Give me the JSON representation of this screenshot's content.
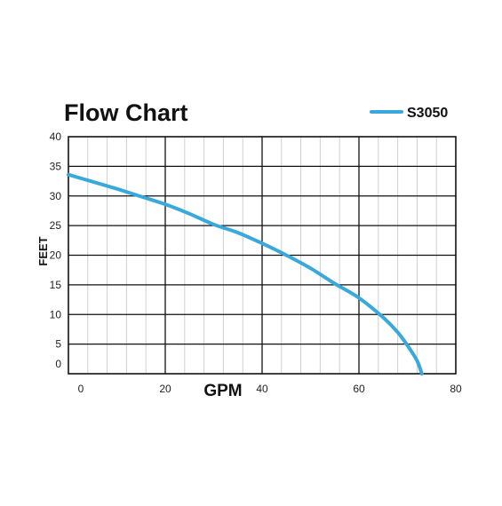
{
  "chart_data": {
    "type": "line",
    "title": "Flow Chart",
    "xlabel": "GPM",
    "ylabel": "FEET",
    "xlim": [
      0,
      80
    ],
    "ylim": [
      0,
      40
    ],
    "x_ticks": [
      0,
      20,
      40,
      60,
      80
    ],
    "y_ticks": [
      0,
      5,
      10,
      15,
      20,
      25,
      30,
      35,
      40
    ],
    "grid": true,
    "legend_position": "top-right",
    "series": [
      {
        "name": "S3050",
        "color": "#39a9dc",
        "x": [
          0,
          5,
          10,
          15,
          20,
          25,
          30,
          35,
          40,
          45,
          50,
          55,
          60,
          65,
          68,
          70,
          72,
          73
        ],
        "y": [
          33.6,
          32.4,
          31.2,
          29.9,
          28.6,
          27.0,
          25.2,
          23.8,
          22.0,
          20.0,
          17.8,
          15.2,
          12.8,
          9.5,
          7.0,
          4.8,
          2.2,
          0
        ]
      }
    ]
  }
}
